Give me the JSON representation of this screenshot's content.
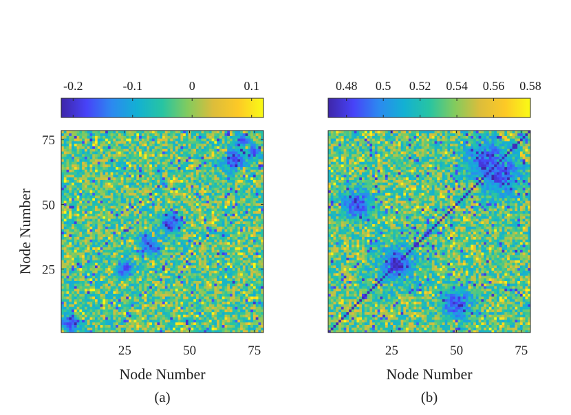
{
  "colormap": [
    "#3e26a8",
    "#4743f8",
    "#2c89f0",
    "#13b0d3",
    "#27c4a2",
    "#82cb5e",
    "#dcbd3b",
    "#fdc926",
    "#f9fb15"
  ],
  "chart_data": [
    {
      "type": "heatmap",
      "panel_label": "(a)",
      "xlabel": "Node Number",
      "ylabel": "Node Number",
      "matrix_size": 78,
      "xticks": [
        25,
        50,
        75
      ],
      "xtick_labels": [
        "25",
        "50",
        "75"
      ],
      "yticks": [
        25,
        50,
        75
      ],
      "ytick_labels": [
        "25",
        "50",
        "75"
      ],
      "color_range": [
        -0.22,
        0.12
      ],
      "colorbar_ticks": [
        -0.2,
        -0.1,
        0,
        0.1
      ],
      "colorbar_tick_labels": [
        "-0.2",
        "-0.1",
        "0",
        "0.1"
      ],
      "colorbar_position": "top",
      "diagonal": false,
      "dark_clusters": [
        {
          "node_x": 4,
          "node_y": 4,
          "spread": 2.5
        },
        {
          "node_x": 42,
          "node_y": 43,
          "spread": 2.5
        },
        {
          "node_x": 35,
          "node_y": 34,
          "spread": 2.5
        },
        {
          "node_x": 25,
          "node_y": 25,
          "spread": 2.5
        },
        {
          "node_x": 67,
          "node_y": 67,
          "spread": 3
        },
        {
          "node_x": 75,
          "node_y": 70,
          "spread": 2
        }
      ]
    },
    {
      "type": "heatmap",
      "panel_label": "(b)",
      "xlabel": "Node Number",
      "ylabel": "",
      "matrix_size": 78,
      "xticks": [
        25,
        50,
        75
      ],
      "xtick_labels": [
        "25",
        "50",
        "75"
      ],
      "yticks": [],
      "ytick_labels": [],
      "color_range": [
        0.47,
        0.58
      ],
      "colorbar_ticks": [
        0.48,
        0.5,
        0.52,
        0.54,
        0.56,
        0.58
      ],
      "colorbar_tick_labels": [
        "0.48",
        "0.5",
        "0.52",
        "0.54",
        "0.56",
        "0.58"
      ],
      "colorbar_position": "top",
      "diagonal": true,
      "dark_clusters": [
        {
          "node_x": 27,
          "node_y": 27,
          "spread": 5
        },
        {
          "node_x": 62,
          "node_y": 66,
          "spread": 6
        },
        {
          "node_x": 12,
          "node_y": 50,
          "spread": 4
        }
      ]
    }
  ]
}
